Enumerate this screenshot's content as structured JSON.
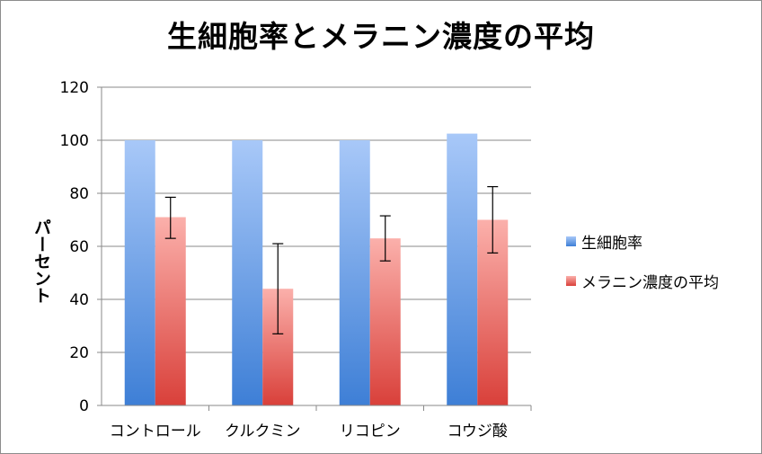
{
  "chart_data": {
    "type": "bar",
    "title": "生細胞率とメラニン濃度の平均",
    "ylabel": "パーセント",
    "xlabel": "",
    "categories": [
      "コントロール",
      "クルクミン",
      "リコピン",
      "コウジ酸"
    ],
    "ylim": [
      0,
      120
    ],
    "yticks": [
      0,
      20,
      40,
      60,
      80,
      100,
      120
    ],
    "grid": true,
    "legend_position": "right",
    "series": [
      {
        "name": "生細胞率",
        "values": [
          100,
          100,
          100,
          102.5
        ],
        "color_top": "#a8c8f8",
        "color_bottom": "#3e7fd6"
      },
      {
        "name": "メラニン濃度の平均",
        "values": [
          71,
          44,
          63,
          70
        ],
        "error": [
          [
            63,
            78.5
          ],
          [
            27,
            61
          ],
          [
            54.5,
            71.5
          ],
          [
            57.5,
            82.5
          ]
        ],
        "color_top": "#fbb0ab",
        "color_bottom": "#d9403a"
      }
    ]
  }
}
